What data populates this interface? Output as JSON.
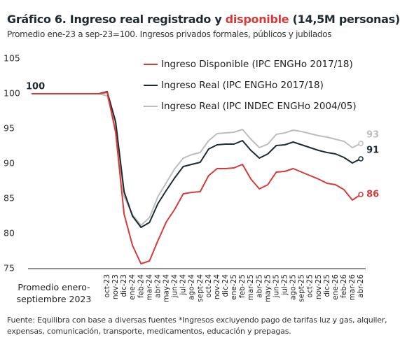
{
  "chart_data": {
    "type": "line",
    "title": "Gráfico 6. Ingreso real registrado y",
    "title_highlight": "disponible",
    "title_end": "(14,5M personas)",
    "subtitle": "Promedio ene-23 a sep-23=100. Ingresos privados formales, públicos y jubilados",
    "source": "Fuente: Equilibra con base a diversas fuentes  *Ingresos excluyendo pago de tarifas luz y gas, alquiler, expensas, comunicación, transporte, medicamentos, educación y prepagas.",
    "categories": [
      "Promedio enero-septiembre 2023",
      "oct-23",
      "nov-23",
      "dic-23",
      "ene-24",
      "feb-24",
      "mar-24",
      "abr-24",
      "may-24",
      "jun-24",
      "jul-24",
      "ago-24",
      "sept-24",
      "oct-24",
      "nov-24",
      "dic-24",
      "ene-25",
      "feb-25",
      "mar-25",
      "abr-25",
      "may-25",
      "jun-25",
      "jul-25",
      "ago-25",
      "sept-25",
      "oct-25",
      "nov-25",
      "dic-25",
      "ene-26",
      "feb-26",
      "mar-26",
      "abr-26"
    ],
    "start_label": 100,
    "series": [
      {
        "name": "Ingreso Disponible (IPC ENGHo 2017/18)",
        "color": "#d63a3a",
        "end_label": "86",
        "values": [
          100,
          100.2,
          94.5,
          82.8,
          78.3,
          75.7,
          76.1,
          79,
          81.7,
          83.5,
          85.7,
          85.9,
          86,
          88.3,
          89.3,
          89.3,
          89.4,
          89.9,
          87.8,
          86.4,
          87,
          88.8,
          88.9,
          89.3,
          88.8,
          88.3,
          87.8,
          87.2,
          87,
          86.3,
          84.8,
          85.6
        ]
      },
      {
        "name": "Ingreso Real (IPC ENGHo 2017/18)",
        "color": "#1f2a30",
        "end_label": "91",
        "values": [
          100,
          100.3,
          96,
          86,
          82.5,
          80.9,
          81.6,
          84.3,
          86.2,
          88,
          89.6,
          89.9,
          90.2,
          92.1,
          92.7,
          92.8,
          92.8,
          93.3,
          91.9,
          90.8,
          91.4,
          92.6,
          92.7,
          93.1,
          92.7,
          92.3,
          91.9,
          91.6,
          91.4,
          90.9,
          90.1,
          90.7
        ]
      },
      {
        "name": "Ingreso Real (IPC INDEC ENGHo 2004/05)",
        "color": "#bdbdbd",
        "end_label": "93",
        "values": [
          100,
          99.7,
          95.5,
          85.3,
          82.7,
          81.2,
          82.3,
          85.3,
          87.3,
          89.3,
          90.8,
          91.3,
          91.6,
          93.3,
          94.3,
          94.4,
          94.5,
          94.9,
          93.5,
          92.3,
          92.8,
          94.2,
          94.4,
          94.8,
          94.6,
          94.3,
          94,
          93.8,
          93.5,
          93.2,
          92.3,
          92.9
        ]
      }
    ],
    "ylim": [
      75,
      105
    ],
    "yticks": [
      75,
      80,
      85,
      90,
      95,
      100,
      105
    ],
    "grid": false
  }
}
